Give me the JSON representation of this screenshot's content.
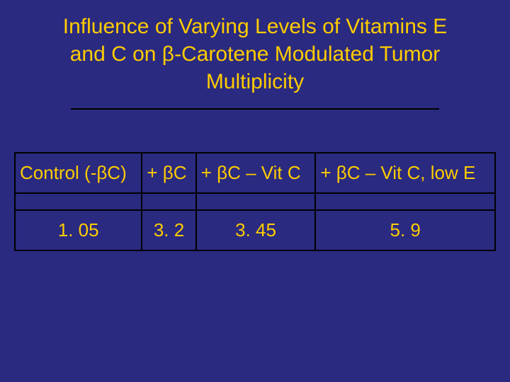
{
  "title": "Influence of Varying Levels of Vitamins E and C on β-Carotene Modulated Tumor Multiplicity",
  "background_color": "#2a2a80",
  "text_color": "#ffcc00",
  "border_color": "#000000",
  "table": {
    "columns": [
      "Control (-βC)",
      "+ βC",
      "+ βC – Vit C",
      "+ βC – Vit C, low E"
    ],
    "rows": [
      [
        "1. 05",
        "3. 2",
        "3. 45",
        "5. 9"
      ]
    ]
  }
}
